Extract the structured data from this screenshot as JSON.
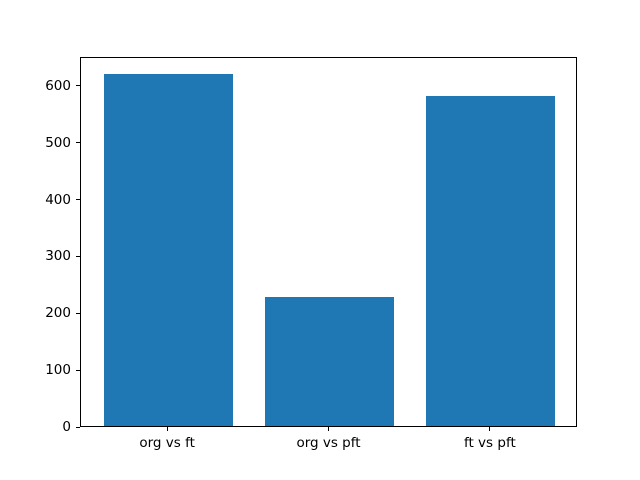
{
  "figure": {
    "background_color": "#ffffff"
  },
  "chart_data": {
    "type": "bar",
    "title": "",
    "xlabel": "",
    "ylabel": "",
    "categories": [
      "org vs ft",
      "org vs pft",
      "ft vs pft"
    ],
    "values": [
      620,
      227,
      580
    ],
    "ylim": [
      0,
      651
    ],
    "xlim": [
      -0.54,
      2.54
    ],
    "yticks": [
      0,
      100,
      200,
      300,
      400,
      500,
      600
    ],
    "bar_width_fraction": 0.8,
    "bar_color": "#1f77b4",
    "axis_color": "#000000",
    "tick_label_color": "#000000",
    "grid": false,
    "legend": "none"
  }
}
